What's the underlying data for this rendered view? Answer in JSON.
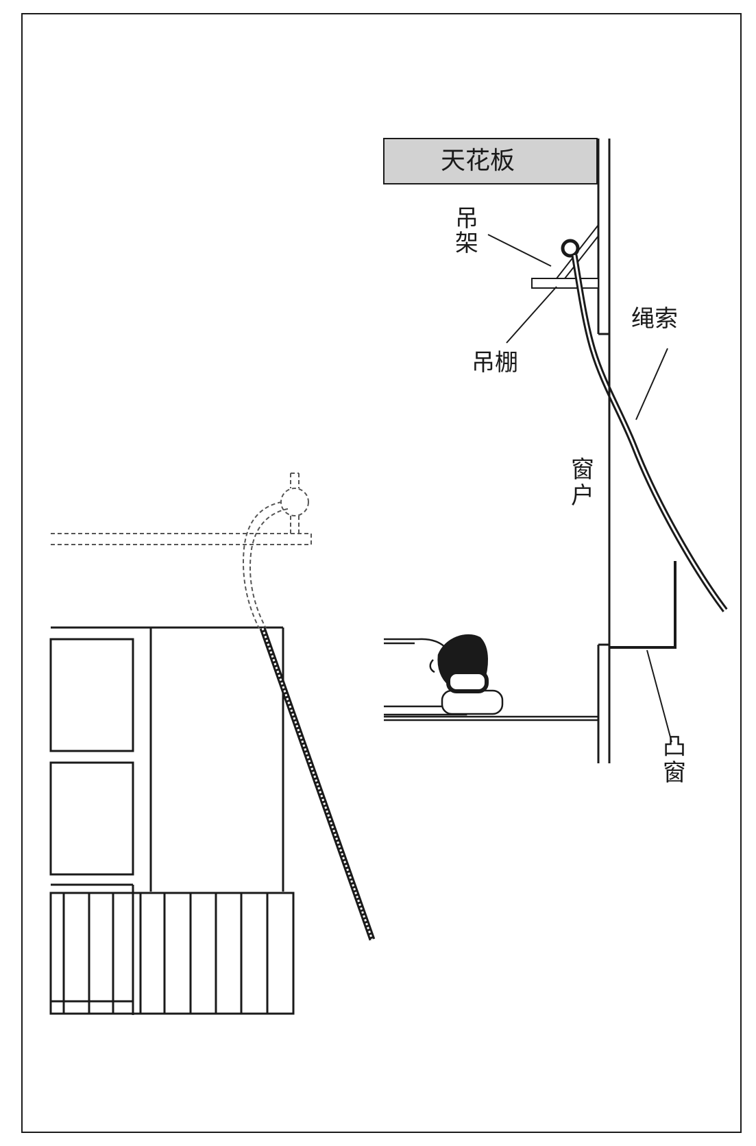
{
  "labels": {
    "ceiling": "天花板",
    "hanger": [
      "吊",
      "架"
    ],
    "ledge": "吊棚",
    "rope": "绳索",
    "window": [
      "窗",
      "户"
    ],
    "bay_window": [
      "凸",
      "窗"
    ]
  },
  "colors": {
    "line": "#1a1a1a",
    "ceiling_fill": "#d2d2d2",
    "background": "#ffffff"
  }
}
